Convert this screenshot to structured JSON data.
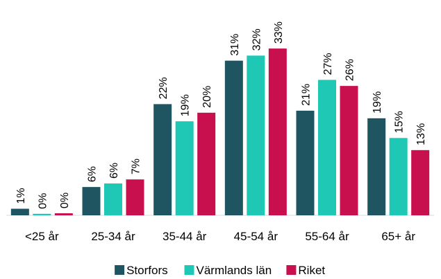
{
  "chart_data": {
    "type": "bar",
    "categories": [
      "<25 år",
      "25-34 år",
      "35-44 år",
      "45-54 år",
      "55-64 år",
      "65+ år"
    ],
    "series": [
      {
        "name": "Storfors",
        "color": "#1f5561",
        "values": [
          1.3,
          5.6,
          22.0,
          30.6,
          20.7,
          19.2
        ],
        "value_labels": [
          "1%",
          "6%",
          "22%",
          "31%",
          "21%",
          "19%"
        ]
      },
      {
        "name": "Värmlands län",
        "color": "#1ec8b4",
        "values": [
          0.3,
          6.3,
          18.6,
          31.6,
          26.8,
          15.3
        ],
        "value_labels": [
          "0%",
          "6%",
          "19%",
          "32%",
          "27%",
          "15%"
        ]
      },
      {
        "name": "Riket",
        "color": "#c8104e",
        "values": [
          0.4,
          7.1,
          20.3,
          33.0,
          25.6,
          12.9
        ],
        "value_labels": [
          "0%",
          "7%",
          "20%",
          "33%",
          "26%",
          "13%"
        ]
      }
    ],
    "ylim": [
      0,
      35
    ]
  }
}
